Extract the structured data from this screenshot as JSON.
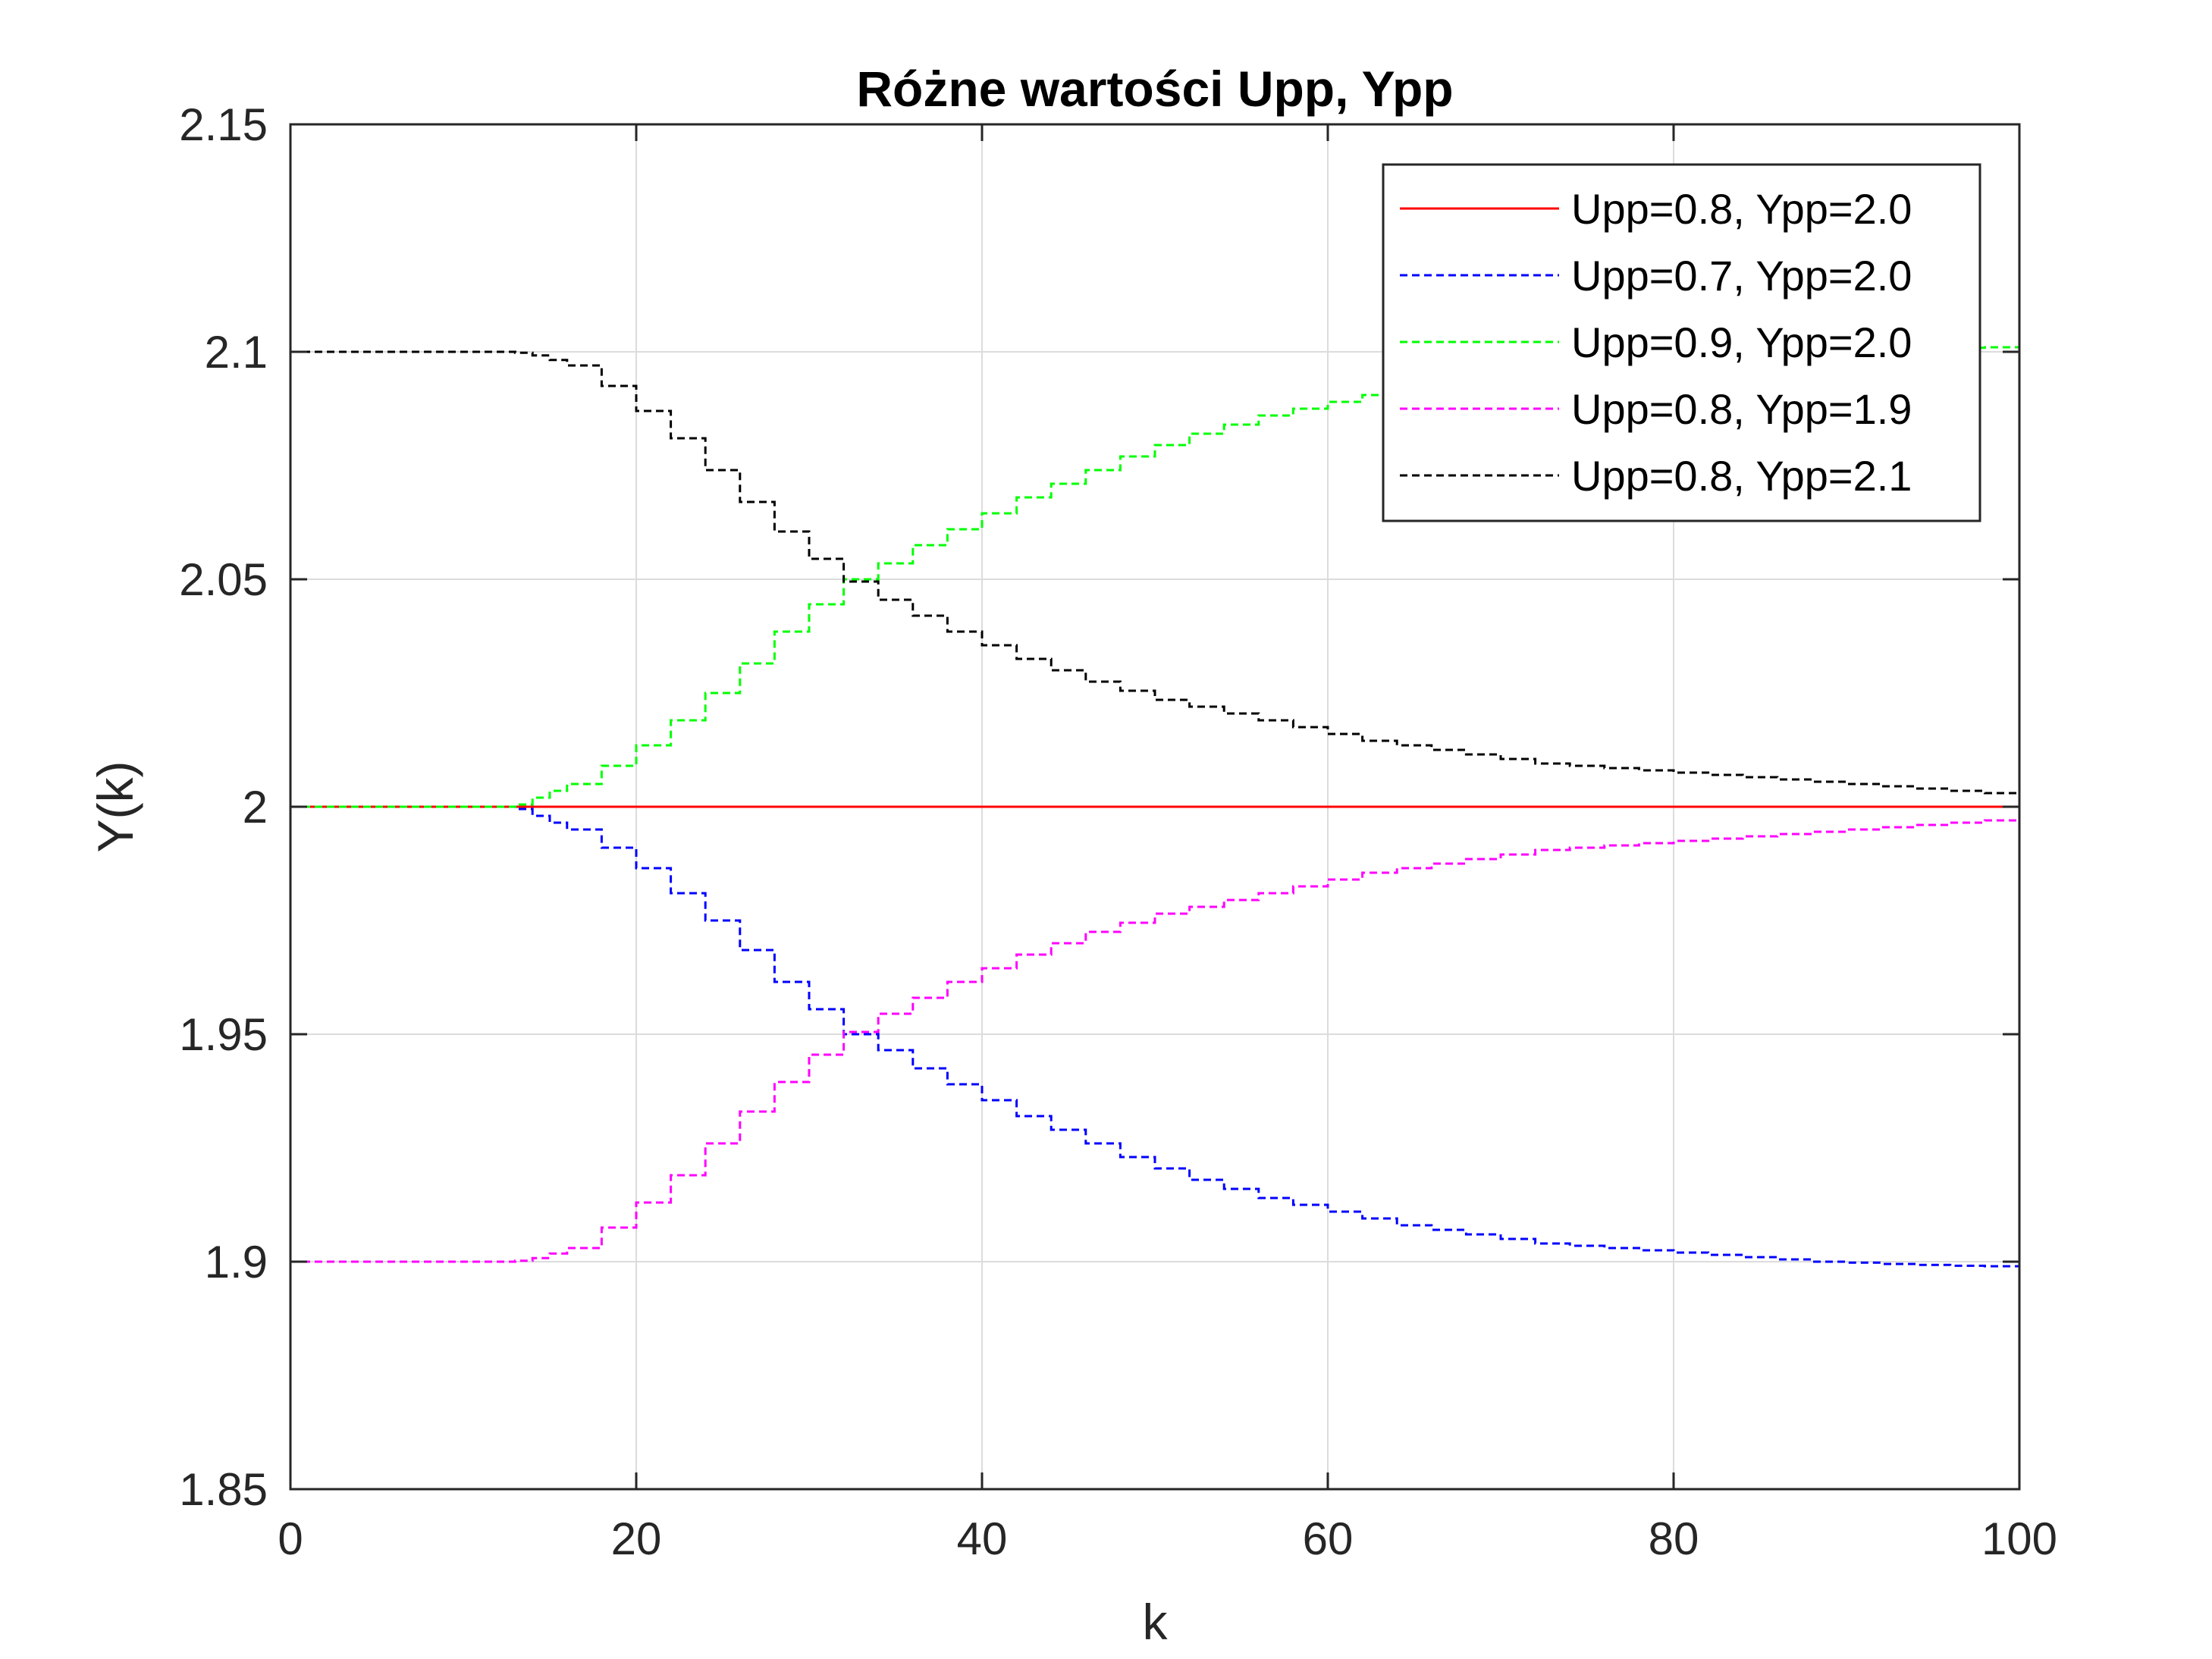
{
  "chart_data": {
    "type": "line",
    "title": "Różne wartości Upp, Ypp",
    "xlabel": "k",
    "ylabel": "Y(k)",
    "xlim": [
      0,
      100
    ],
    "ylim": [
      1.85,
      2.15
    ],
    "xticks": [
      0,
      20,
      40,
      60,
      80,
      100
    ],
    "xtick_labels": [
      "0",
      "20",
      "40",
      "60",
      "80",
      "100"
    ],
    "yticks": [
      1.85,
      1.9,
      1.95,
      2.0,
      2.05,
      2.1,
      2.15
    ],
    "ytick_labels": [
      "1.85",
      "1.9",
      "1.95",
      "2",
      "2.05",
      "2.1",
      "2.15"
    ],
    "grid": true,
    "legend_position": "top-right",
    "step": true,
    "x": [
      0,
      12,
      13,
      14,
      15,
      16,
      18,
      20,
      22,
      24,
      26,
      28,
      30,
      32,
      34,
      36,
      38,
      40,
      42,
      44,
      46,
      48,
      50,
      52,
      54,
      56,
      58,
      60,
      62,
      64,
      66,
      68,
      70,
      72,
      74,
      76,
      78,
      80,
      82,
      84,
      86,
      88,
      90,
      92,
      94,
      96,
      98,
      100
    ],
    "series": [
      {
        "name": "Upp=0.8, Ypp=2.0",
        "color": "#ff0000",
        "dash": "solid",
        "values": [
          2.0,
          2.0,
          2.0,
          2.0,
          2.0,
          2.0,
          2.0,
          2.0,
          2.0,
          2.0,
          2.0,
          2.0,
          2.0,
          2.0,
          2.0,
          2.0,
          2.0,
          2.0,
          2.0,
          2.0,
          2.0,
          2.0,
          2.0,
          2.0,
          2.0,
          2.0,
          2.0,
          2.0,
          2.0,
          2.0,
          2.0,
          2.0,
          2.0,
          2.0,
          2.0,
          2.0,
          2.0,
          2.0,
          2.0,
          2.0,
          2.0,
          2.0,
          2.0,
          2.0,
          2.0,
          2.0,
          2.0,
          2.0
        ]
      },
      {
        "name": "Upp=0.7, Ypp=2.0",
        "color": "#0000ff",
        "dash": "dashed",
        "values": [
          2.0,
          2.0,
          1.9995,
          1.998,
          1.9965,
          1.995,
          1.991,
          1.9865,
          1.981,
          1.975,
          1.9685,
          1.9615,
          1.9555,
          1.95,
          1.9465,
          1.9425,
          1.939,
          1.9355,
          1.932,
          1.929,
          1.926,
          1.923,
          1.9205,
          1.918,
          1.916,
          1.914,
          1.9125,
          1.911,
          1.9095,
          1.908,
          1.907,
          1.906,
          1.905,
          1.904,
          1.9035,
          1.903,
          1.9025,
          1.902,
          1.9015,
          1.901,
          1.9005,
          1.9,
          1.8998,
          1.8995,
          1.8993,
          1.8991,
          1.899,
          1.8988
        ]
      },
      {
        "name": "Upp=0.9, Ypp=2.0",
        "color": "#00ff00",
        "dash": "dashed",
        "values": [
          2.0,
          2.0,
          2.0005,
          2.002,
          2.0035,
          2.005,
          2.009,
          2.0135,
          2.019,
          2.025,
          2.0315,
          2.0385,
          2.0445,
          2.05,
          2.0535,
          2.0575,
          2.061,
          2.0645,
          2.068,
          2.071,
          2.074,
          2.077,
          2.0795,
          2.082,
          2.084,
          2.086,
          2.0875,
          2.089,
          2.0905,
          2.092,
          2.093,
          2.094,
          2.095,
          2.096,
          2.0965,
          2.097,
          2.0975,
          2.098,
          2.0985,
          2.099,
          2.0995,
          2.1,
          2.1002,
          2.1005,
          2.1007,
          2.1009,
          2.101,
          2.1012
        ]
      },
      {
        "name": "Upp=0.8, Ypp=1.9",
        "color": "#ff00ff",
        "dash": "dashed",
        "values": [
          1.9,
          1.9,
          1.9002,
          1.9008,
          1.9018,
          1.903,
          1.9075,
          1.913,
          1.919,
          1.926,
          1.933,
          1.9395,
          1.9455,
          1.9505,
          1.9545,
          1.958,
          1.9615,
          1.9645,
          1.9675,
          1.97,
          1.9725,
          1.9745,
          1.9765,
          1.978,
          1.9795,
          1.981,
          1.9825,
          1.984,
          1.9855,
          1.9865,
          1.9875,
          1.9885,
          1.9895,
          1.9905,
          1.991,
          1.9915,
          1.992,
          1.9925,
          1.993,
          1.9935,
          1.994,
          1.9945,
          1.995,
          1.9955,
          1.996,
          1.9965,
          1.997,
          1.9985
        ]
      },
      {
        "name": "Upp=0.8, Ypp=2.1",
        "color": "#000000",
        "dash": "dashed",
        "values": [
          2.1,
          2.1,
          2.0998,
          2.0992,
          2.0982,
          2.097,
          2.0925,
          2.087,
          2.081,
          2.074,
          2.067,
          2.0605,
          2.0545,
          2.0495,
          2.0455,
          2.042,
          2.0385,
          2.0355,
          2.0325,
          2.03,
          2.0275,
          2.0255,
          2.0235,
          2.022,
          2.0205,
          2.019,
          2.0175,
          2.016,
          2.0145,
          2.0135,
          2.0125,
          2.0115,
          2.0105,
          2.0095,
          2.009,
          2.0085,
          2.008,
          2.0075,
          2.007,
          2.0065,
          2.006,
          2.0055,
          2.005,
          2.0045,
          2.004,
          2.0035,
          2.003,
          2.0015
        ]
      }
    ]
  }
}
